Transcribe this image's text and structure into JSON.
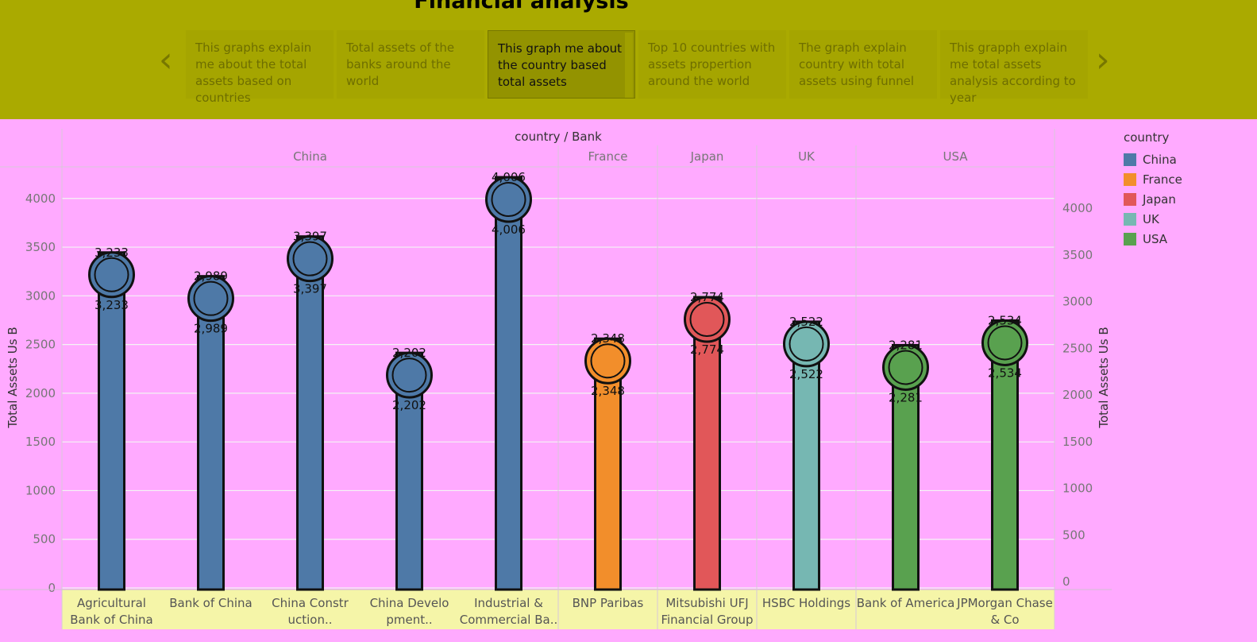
{
  "header": {
    "title": "Financial analysis",
    "prev_icon": "chevron-left-icon",
    "next_icon": "chevron-right-icon",
    "cards": [
      {
        "text": "This graphs explain me about the total assets based on countries",
        "active": false
      },
      {
        "text": "Total assets of the banks around the world",
        "active": false
      },
      {
        "text": "This graph me about the country based total assets",
        "active": true
      },
      {
        "text": "Top 10 countries with assets propertion around the world",
        "active": false
      },
      {
        "text": "The graph explain country with total assets using funnel",
        "active": false
      },
      {
        "text": "This grapph explain me total assets analysis according to year",
        "active": false
      }
    ]
  },
  "legend": {
    "title": "country",
    "items": [
      {
        "label": "China",
        "color": "#4e79a7"
      },
      {
        "label": "France",
        "color": "#f28e2b"
      },
      {
        "label": "Japan",
        "color": "#e15759"
      },
      {
        "label": "UK",
        "color": "#76b7b2"
      },
      {
        "label": "USA",
        "color": "#59a14f"
      }
    ]
  },
  "chart_data": {
    "type": "bar",
    "title": "country / Bank",
    "xlabel": "",
    "ylabel": "Total Assets Us B",
    "y2label": "Total Assets Us B",
    "ylim": [
      0,
      4300
    ],
    "yticks": [
      0,
      500,
      1000,
      1500,
      2000,
      2500,
      3000,
      3500,
      4000
    ],
    "grid": true,
    "legend_position": "right",
    "groups": [
      {
        "name": "China",
        "categories": [
          {
            "bank": "Agricultural Bank of China",
            "value": 3233
          },
          {
            "bank": "Bank of China",
            "value": 2989
          },
          {
            "bank": "China Construction..",
            "value": 3397
          },
          {
            "bank": "China Development..",
            "value": 2202
          },
          {
            "bank": "Industrial & Commercial Ba..",
            "value": 4006
          }
        ]
      },
      {
        "name": "France",
        "categories": [
          {
            "bank": "BNP Paribas",
            "value": 2348
          }
        ]
      },
      {
        "name": "Japan",
        "categories": [
          {
            "bank": "Mitsubishi UFJ Financial Group",
            "value": 2774
          }
        ]
      },
      {
        "name": "UK",
        "categories": [
          {
            "bank": "HSBC Holdings",
            "value": 2522
          }
        ]
      },
      {
        "name": "USA",
        "categories": [
          {
            "bank": "Bank of America",
            "value": 2281
          },
          {
            "bank": "JPMorgan Chase & Co",
            "value": 2534
          }
        ]
      }
    ],
    "value_labels": [
      "3,233",
      "2,989",
      "3,397",
      "2,202",
      "4,006",
      "2,348",
      "2,774",
      "2,522",
      "2,281",
      "2,534"
    ],
    "x_tick_lines": [
      [
        "Agricultural",
        "Bank of China"
      ],
      [
        "Bank of China"
      ],
      [
        "China Constr",
        "uction.."
      ],
      [
        "China Develo",
        "pment.."
      ],
      [
        "Industrial &",
        "Commercial Ba.."
      ],
      [
        "BNP Paribas"
      ],
      [
        "Mitsubishi UFJ",
        "Financial Group"
      ],
      [
        "HSBC Holdings"
      ],
      [
        "Bank of America"
      ],
      [
        "JPMorgan Chase",
        "& Co"
      ]
    ]
  }
}
